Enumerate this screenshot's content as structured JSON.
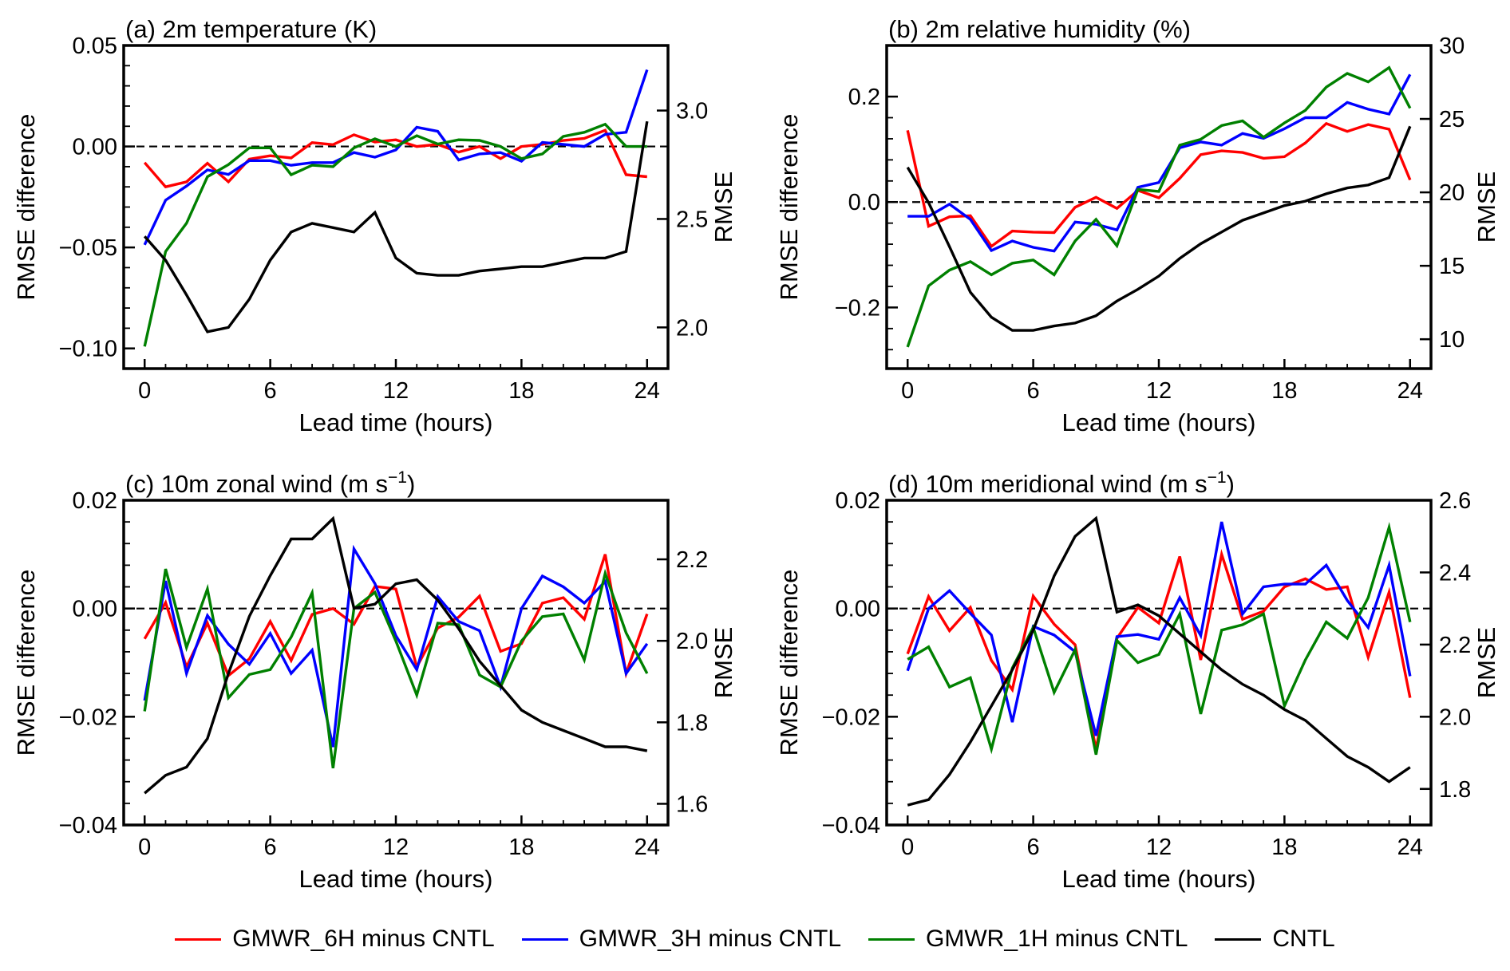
{
  "chart_data": {
    "type": "line",
    "x": [
      0,
      1,
      2,
      3,
      4,
      5,
      6,
      7,
      8,
      9,
      10,
      11,
      12,
      13,
      14,
      15,
      16,
      17,
      18,
      19,
      20,
      21,
      22,
      23,
      24
    ],
    "legend": {
      "placement": "bottom-center",
      "entries": [
        {
          "name": "GMWR_6H minus CNTL",
          "color": "#ff0000"
        },
        {
          "name": "GMWR_3H minus CNTL",
          "color": "#0000ff"
        },
        {
          "name": "GMWR_1H minus CNTL",
          "color": "#008000"
        },
        {
          "name": "CNTL",
          "color": "#000000"
        }
      ]
    },
    "panels": [
      {
        "title": "(a) 2m temperature (K)",
        "xlabel": "Lead time (hours)",
        "ylabel": "RMSE difference",
        "ylabel_right": "RMSE",
        "xlim": [
          -1,
          25
        ],
        "xticks": [
          0,
          6,
          12,
          18,
          24
        ],
        "xtick_labels": [
          "0",
          "6",
          "12",
          "18",
          "24"
        ],
        "ylim": [
          -0.11,
          0.05
        ],
        "yticks": [
          0.05,
          0.0,
          -0.05,
          -0.1
        ],
        "ytick_labels": [
          "0.05",
          "0.00",
          "−0.05",
          "−0.10"
        ],
        "ylim_right": [
          1.81,
          3.3
        ],
        "yticks_right": [
          3.0,
          2.5,
          2.0
        ],
        "ytick_labels_right": [
          "3.0",
          "2.5",
          "2.0"
        ],
        "series": [
          {
            "name": "GMWR_6H minus CNTL",
            "values": [
              -0.008,
              -0.02,
              -0.0175,
              -0.0083,
              -0.0175,
              -0.0063,
              -0.0046,
              -0.0057,
              0.0019,
              0.0009,
              0.0058,
              0.0022,
              0.0033,
              0.0,
              0.001,
              -0.0028,
              0.0,
              -0.006,
              0.0,
              0.001,
              0.003,
              0.004,
              0.008,
              -0.014,
              -0.015
            ]
          },
          {
            "name": "GMWR_3H minus CNTL",
            "values": [
              -0.0487,
              -0.0266,
              -0.0196,
              -0.0116,
              -0.0139,
              -0.007,
              -0.007,
              -0.0093,
              -0.008,
              -0.008,
              -0.003,
              -0.0053,
              -0.0017,
              0.0095,
              0.0075,
              -0.0067,
              -0.0037,
              -0.003,
              -0.0073,
              0.002,
              0.001,
              0.0,
              0.006,
              0.007,
              0.038
            ]
          },
          {
            "name": "GMWR_1H minus CNTL",
            "values": [
              -0.099,
              -0.052,
              -0.038,
              -0.015,
              -0.009,
              -0.0007,
              -0.0007,
              -0.014,
              -0.0093,
              -0.01,
              -0.0007,
              0.0038,
              0.0,
              0.0053,
              0.0012,
              0.0033,
              0.003,
              0.0,
              -0.006,
              -0.0037,
              0.005,
              0.007,
              0.011,
              0.0,
              0.0
            ]
          },
          {
            "name": "CNTL",
            "axis": "right",
            "values": [
              2.42,
              2.31,
              2.15,
              1.98,
              2.0,
              2.13,
              2.31,
              2.44,
              2.48,
              2.46,
              2.44,
              2.53,
              2.32,
              2.25,
              2.24,
              2.24,
              2.26,
              2.27,
              2.28,
              2.28,
              2.3,
              2.32,
              2.32,
              2.35,
              2.95
            ]
          }
        ]
      },
      {
        "title": "(b) 2m relative humidity (%)",
        "xlabel": "Lead time (hours)",
        "ylabel": "RMSE difference",
        "ylabel_right": "RMSE",
        "xlim": [
          -1,
          25
        ],
        "xticks": [
          0,
          6,
          12,
          18,
          24
        ],
        "xtick_labels": [
          "0",
          "6",
          "12",
          "18",
          "24"
        ],
        "ylim": [
          -0.316,
          0.297
        ],
        "yticks": [
          0.2,
          0.0,
          -0.2
        ],
        "ytick_labels": [
          "0.2",
          "0.0",
          "−0.2"
        ],
        "ylim_right": [
          8.0,
          30.0
        ],
        "yticks_right": [
          30,
          25,
          20,
          15,
          10
        ],
        "ytick_labels_right": [
          "30",
          "25",
          "20",
          "15",
          "10"
        ],
        "series": [
          {
            "name": "GMWR_6H minus CNTL",
            "values": [
              0.136,
              -0.046,
              -0.028,
              -0.026,
              -0.084,
              -0.055,
              -0.057,
              -0.058,
              -0.01,
              0.009,
              -0.012,
              0.022,
              0.008,
              0.045,
              0.09,
              0.097,
              0.094,
              0.083,
              0.086,
              0.112,
              0.149,
              0.134,
              0.147,
              0.138,
              0.042
            ]
          },
          {
            "name": "GMWR_3H minus CNTL",
            "values": [
              -0.027,
              -0.027,
              -0.004,
              -0.033,
              -0.092,
              -0.074,
              -0.086,
              -0.093,
              -0.038,
              -0.042,
              -0.053,
              0.028,
              0.037,
              0.103,
              0.114,
              0.108,
              0.13,
              0.121,
              0.139,
              0.16,
              0.16,
              0.189,
              0.176,
              0.167,
              0.242
            ]
          },
          {
            "name": "GMWR_1H minus CNTL",
            "values": [
              -0.275,
              -0.159,
              -0.129,
              -0.113,
              -0.138,
              -0.116,
              -0.11,
              -0.138,
              -0.074,
              -0.033,
              -0.083,
              0.024,
              0.02,
              0.108,
              0.119,
              0.145,
              0.154,
              0.123,
              0.15,
              0.174,
              0.218,
              0.244,
              0.228,
              0.255,
              0.178
            ]
          },
          {
            "name": "CNTL",
            "axis": "right",
            "values": [
              21.7,
              19.3,
              16.3,
              13.2,
              11.5,
              10.6,
              10.6,
              10.9,
              11.1,
              11.6,
              12.6,
              13.4,
              14.3,
              15.5,
              16.5,
              17.3,
              18.1,
              18.6,
              19.1,
              19.4,
              19.9,
              20.3,
              20.5,
              21.0,
              24.5
            ]
          }
        ]
      },
      {
        "title": "(c) 10m zonal wind (m s",
        "title_sup": "−1",
        "title_end": ")",
        "xlabel": "Lead time (hours)",
        "ylabel": "RMSE difference",
        "ylabel_right": "RMSE",
        "xlim": [
          -1,
          25
        ],
        "xticks": [
          0,
          6,
          12,
          18,
          24
        ],
        "xtick_labels": [
          "0",
          "6",
          "12",
          "18",
          "24"
        ],
        "ylim": [
          -0.04,
          0.02
        ],
        "yticks": [
          0.02,
          0.0,
          -0.02,
          -0.04
        ],
        "ytick_labels": [
          "0.02",
          "0.00",
          "−0.02",
          "−0.04"
        ],
        "ylim_right": [
          1.548,
          2.345
        ],
        "yticks_right": [
          2.2,
          2.0,
          1.8,
          1.6
        ],
        "ytick_labels_right": [
          "2.2",
          "2.0",
          "1.8",
          "1.6"
        ],
        "series": [
          {
            "name": "GMWR_6H minus CNTL",
            "values": [
              -0.0056,
              0.0011,
              -0.0108,
              -0.0027,
              -0.0124,
              -0.0093,
              -0.0024,
              -0.0096,
              -0.0011,
              0.0,
              -0.0029,
              0.0041,
              0.0036,
              -0.0108,
              -0.0036,
              -0.0016,
              0.0023,
              -0.0079,
              -0.0065,
              0.001,
              0.002,
              -0.002,
              0.01,
              -0.012,
              -0.001
            ]
          },
          {
            "name": "GMWR_3H minus CNTL",
            "values": [
              -0.017,
              0.0051,
              -0.012,
              -0.0013,
              -0.0066,
              -0.0103,
              -0.0046,
              -0.012,
              -0.0077,
              -0.0256,
              0.011,
              0.0046,
              -0.005,
              -0.0113,
              0.0022,
              -0.0024,
              -0.0041,
              -0.0145,
              0.0,
              0.006,
              0.004,
              0.001,
              0.005,
              -0.012,
              -0.0065
            ]
          },
          {
            "name": "GMWR_1H minus CNTL",
            "values": [
              -0.019,
              0.0073,
              -0.0072,
              0.0036,
              -0.0165,
              -0.0122,
              -0.0113,
              -0.0053,
              0.0029,
              -0.0295,
              0.0,
              0.003,
              -0.006,
              -0.016,
              -0.0027,
              -0.003,
              -0.0123,
              -0.0145,
              -0.006,
              -0.0015,
              -0.001,
              -0.0095,
              0.0065,
              -0.0045,
              -0.012
            ]
          },
          {
            "name": "CNTL",
            "axis": "right",
            "values": [
              1.626,
              1.67,
              1.69,
              1.76,
              1.92,
              2.06,
              2.16,
              2.25,
              2.25,
              2.3,
              2.08,
              2.09,
              2.14,
              2.15,
              2.1,
              2.03,
              1.95,
              1.89,
              1.83,
              1.8,
              1.78,
              1.76,
              1.74,
              1.74,
              1.73
            ]
          }
        ]
      },
      {
        "title": "(d) 10m meridional wind (m s",
        "title_sup": "−1",
        "title_end": ")",
        "xlabel": "Lead time (hours)",
        "ylabel": "RMSE difference",
        "ylabel_right": "RMSE",
        "xlim": [
          -1,
          25
        ],
        "xticks": [
          0,
          6,
          12,
          18,
          24
        ],
        "xtick_labels": [
          "0",
          "6",
          "12",
          "18",
          "24"
        ],
        "ylim": [
          -0.04,
          0.02
        ],
        "yticks": [
          0.02,
          0.0,
          -0.02,
          -0.04
        ],
        "ytick_labels": [
          "0.02",
          "0.00",
          "−0.02",
          "−0.04"
        ],
        "ylim_right": [
          1.7,
          2.6
        ],
        "yticks_right": [
          2.6,
          2.4,
          2.2,
          2.0,
          1.8
        ],
        "ytick_labels_right": [
          "2.6",
          "2.4",
          "2.2",
          "2.0",
          "1.8"
        ],
        "series": [
          {
            "name": "GMWR_6H minus CNTL",
            "values": [
              -0.0084,
              0.0022,
              -0.0041,
              0.0002,
              -0.0096,
              -0.015,
              0.0023,
              -0.0029,
              -0.0067,
              -0.026,
              -0.0055,
              0.0002,
              -0.0027,
              0.0096,
              -0.0095,
              0.01,
              -0.002,
              -0.0005,
              0.004,
              0.0055,
              0.0035,
              0.004,
              -0.009,
              0.003,
              -0.0165
            ]
          },
          {
            "name": "GMWR_3H minus CNTL",
            "values": [
              -0.0115,
              0.0,
              0.0033,
              -0.0009,
              -0.0049,
              -0.021,
              -0.0033,
              -0.0049,
              -0.008,
              -0.0235,
              -0.0052,
              -0.0048,
              -0.0057,
              0.002,
              -0.005,
              0.016,
              -0.001,
              0.004,
              0.0045,
              0.0045,
              0.008,
              0.0015,
              -0.0035,
              0.008,
              -0.0125
            ]
          },
          {
            "name": "GMWR_1H minus CNTL",
            "values": [
              -0.0094,
              -0.0071,
              -0.0145,
              -0.0128,
              -0.026,
              -0.011,
              -0.0035,
              -0.0155,
              -0.0076,
              -0.027,
              -0.0059,
              -0.01,
              -0.0085,
              -0.001,
              -0.0195,
              -0.004,
              -0.003,
              -0.001,
              -0.018,
              -0.0095,
              -0.0025,
              -0.0055,
              0.002,
              0.015,
              -0.0025
            ]
          },
          {
            "name": "CNTL",
            "axis": "right",
            "values": [
              1.755,
              1.77,
              1.84,
              1.93,
              2.03,
              2.13,
              2.24,
              2.39,
              2.5,
              2.55,
              2.29,
              2.31,
              2.28,
              2.23,
              2.18,
              2.13,
              2.09,
              2.06,
              2.02,
              1.99,
              1.94,
              1.89,
              1.86,
              1.82,
              1.86
            ]
          }
        ]
      }
    ]
  }
}
